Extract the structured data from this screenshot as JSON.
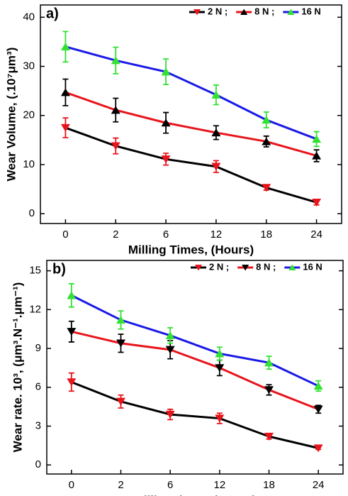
{
  "chart_data": [
    {
      "type": "line",
      "title": "a)",
      "x_label": "Milling Times, (Hours)",
      "y_label": "Wear Volume, (.10⁷μm³)",
      "categories": [
        "0",
        "2",
        "6",
        "12",
        "18",
        "24"
      ],
      "ylim": [
        -2,
        42.5
      ],
      "yticks": [
        0,
        10,
        20,
        30,
        40
      ],
      "legend": "top-right",
      "series": [
        {
          "name": "2 N ;",
          "color": "#e8141c",
          "line_color": "#000000",
          "marker": "triangle-down",
          "values": [
            17.5,
            13.8,
            11.1,
            9.6,
            5.3,
            2.3
          ],
          "errors": [
            2.0,
            1.6,
            1.2,
            1.2,
            0.5,
            0.5
          ]
        },
        {
          "name": "8 N ;",
          "color": "#000000",
          "line_color": "#e8141c",
          "marker": "triangle-up",
          "values": [
            24.7,
            21.1,
            18.5,
            16.5,
            14.7,
            11.8
          ],
          "errors": [
            2.7,
            2.4,
            2.1,
            1.4,
            1.1,
            1.2
          ]
        },
        {
          "name": "16 N",
          "color": "#33e133",
          "line_color": "#1a1ae6",
          "marker": "triangle-up",
          "values": [
            34.0,
            31.2,
            28.9,
            24.2,
            19.1,
            15.2
          ],
          "errors": [
            3.1,
            2.7,
            2.6,
            2.0,
            1.6,
            1.5
          ]
        }
      ]
    },
    {
      "type": "line",
      "title": "b)",
      "x_label": "Milling times, (Hours)",
      "y_label": "Wear rate. 10³, (μm³.N⁻¹.μm⁻¹)",
      "categories": [
        "0",
        "2",
        "6",
        "12",
        "18",
        "24"
      ],
      "ylim": [
        -0.7,
        15.8
      ],
      "yticks": [
        0,
        3,
        6,
        9,
        12,
        15
      ],
      "legend": "top-right",
      "series": [
        {
          "name": "2 N ;",
          "color": "#e8141c",
          "line_color": "#000000",
          "marker": "triangle-down",
          "values": [
            6.4,
            4.9,
            3.9,
            3.6,
            2.2,
            1.3
          ],
          "errors": [
            0.7,
            0.5,
            0.4,
            0.4,
            0.2,
            0.1
          ]
        },
        {
          "name": "8 N ;",
          "color": "#000000",
          "line_color": "#e8141c",
          "marker": "triangle-down",
          "values": [
            10.3,
            9.4,
            8.9,
            7.5,
            5.8,
            4.3
          ],
          "errors": [
            0.8,
            0.7,
            0.7,
            0.6,
            0.4,
            0.3
          ]
        },
        {
          "name": "16 N",
          "color": "#33e133",
          "line_color": "#1a1ae6",
          "marker": "triangle-up",
          "values": [
            13.1,
            11.2,
            10.0,
            8.6,
            7.9,
            6.1
          ],
          "errors": [
            0.9,
            0.7,
            0.6,
            0.5,
            0.5,
            0.4
          ]
        }
      ]
    }
  ]
}
